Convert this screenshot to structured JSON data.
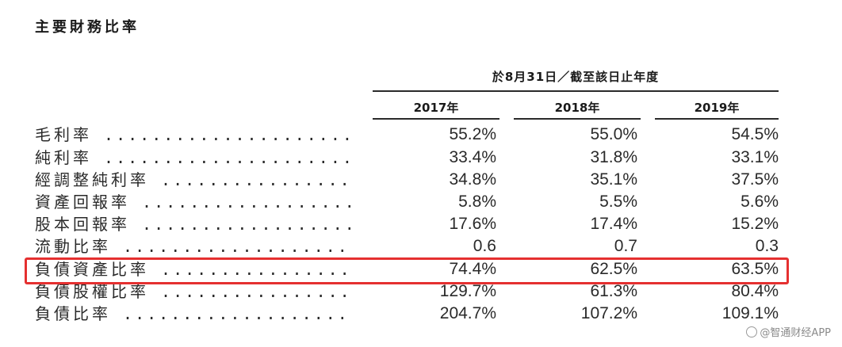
{
  "title": "主要財務比率",
  "header": {
    "period": "於8月31日／截至該日止年度",
    "years": [
      "2017年",
      "2018年",
      "2019年"
    ]
  },
  "rows": [
    {
      "label": "毛利率",
      "values": [
        "55.2%",
        "55.0%",
        "54.5%"
      ]
    },
    {
      "label": "純利率",
      "values": [
        "33.4%",
        "31.8%",
        "33.1%"
      ]
    },
    {
      "label": "經調整純利率",
      "values": [
        "34.8%",
        "35.1%",
        "37.5%"
      ]
    },
    {
      "label": "資產回報率",
      "values": [
        "5.8%",
        "5.5%",
        "5.6%"
      ]
    },
    {
      "label": "股本回報率",
      "values": [
        "17.6%",
        "17.4%",
        "15.2%"
      ]
    },
    {
      "label": "流動比率",
      "values": [
        "0.6",
        "0.7",
        "0.3"
      ]
    },
    {
      "label": "負債資產比率",
      "values": [
        "74.4%",
        "62.5%",
        "63.5%"
      ]
    },
    {
      "label": "負債股權比率",
      "values": [
        "129.7%",
        "61.3%",
        "80.4%"
      ]
    },
    {
      "label": "負債比率",
      "values": [
        "204.7%",
        "107.2%",
        "109.1%"
      ]
    }
  ],
  "highlight": {
    "row_label": "負債資產比率",
    "color": "#e53030"
  },
  "watermark": {
    "text": "@智通财经APP",
    "icon": "paw-icon"
  }
}
